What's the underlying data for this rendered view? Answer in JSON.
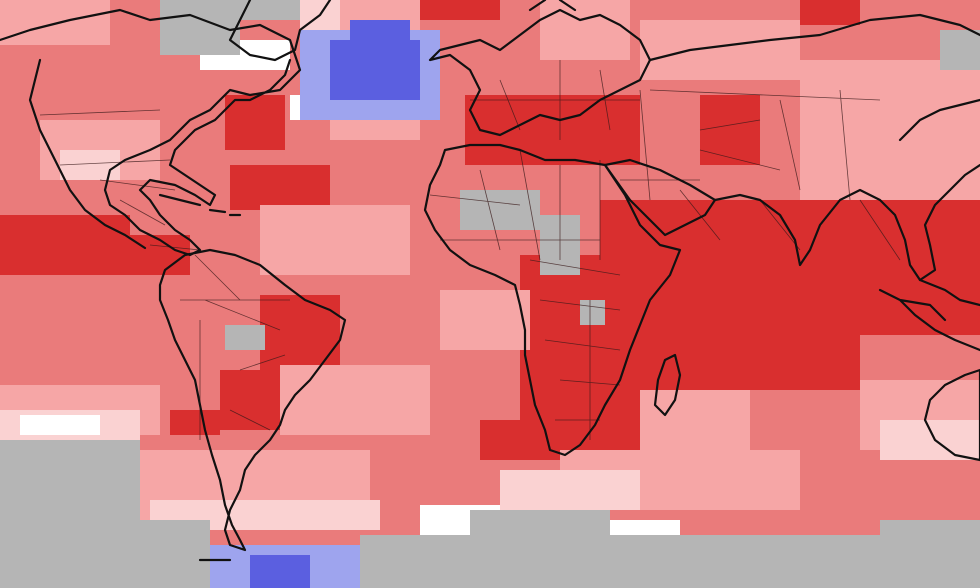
{
  "map": {
    "type": "global-temperature-anomaly-grid",
    "projection": "equirectangular",
    "legend_visible": false,
    "title": "",
    "category_colors": {
      "much_warmer": "#d92f2f",
      "warmer": "#ea7b7b",
      "slightly_warmer": "#f6a6a6",
      "near_average": "#fad2d2",
      "neutral": "#ffffff",
      "cooler": "#9ea4ee",
      "much_cooler": "#5b5fe0",
      "no_data": "#b5b5b5"
    },
    "background_category": "warmer",
    "coastline_color": "#111111",
    "border_color": "#3a1a1a"
  }
}
